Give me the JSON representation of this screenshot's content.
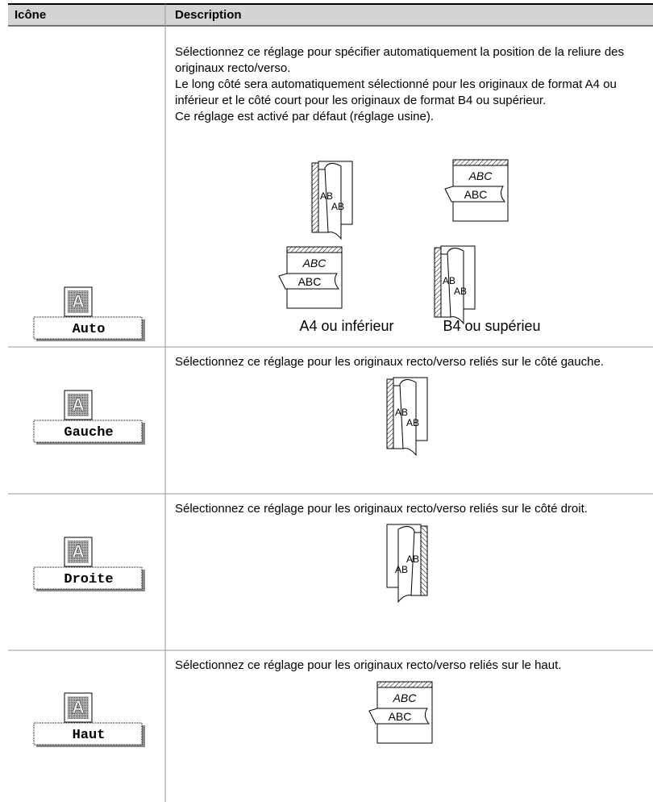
{
  "header": {
    "icon": "Icône",
    "description": "Description"
  },
  "rows": [
    {
      "icon_glyph": "A",
      "button": "Auto",
      "paragraphs": [
        "Sélectionnez ce réglage pour spécifier automatiquement la position de la reliure des originaux recto/verso.",
        "Le long côté sera automatiquement sélectionné pour les originaux de format A4 ou inférieur et le côté court pour les originaux de format B4 ou supérieur.",
        "Ce réglage est activé par défaut (réglage usine)."
      ],
      "figures": [
        {
          "labels": [
            "AB",
            "AB"
          ]
        },
        {
          "labels": [
            "ABC",
            "ABC"
          ]
        },
        {
          "labels": [
            "ABC",
            "ABC"
          ]
        },
        {
          "labels": [
            "AB",
            "AB"
          ]
        }
      ],
      "captions": [
        "A4 ou inférieur",
        "B4 ou supérieu"
      ]
    },
    {
      "icon_glyph": "A",
      "button": "Gauche",
      "paragraphs": [
        "Sélectionnez ce réglage pour les originaux recto/verso reliés sur le côté gauche."
      ],
      "figures": [
        {
          "labels": [
            "AB",
            "AB"
          ]
        }
      ]
    },
    {
      "icon_glyph": "A",
      "button": "Droite",
      "paragraphs": [
        "Sélectionnez ce réglage pour les originaux recto/verso reliés sur le côté droit."
      ],
      "figures": [
        {
          "labels": [
            "AB",
            "AB"
          ]
        }
      ]
    },
    {
      "icon_glyph": "A",
      "button": "Haut",
      "paragraphs": [
        "Sélectionnez ce réglage pour les originaux recto/verso reliés sur le haut."
      ],
      "figures": [
        {
          "labels": [
            "ABC",
            "ABC"
          ]
        }
      ]
    }
  ]
}
